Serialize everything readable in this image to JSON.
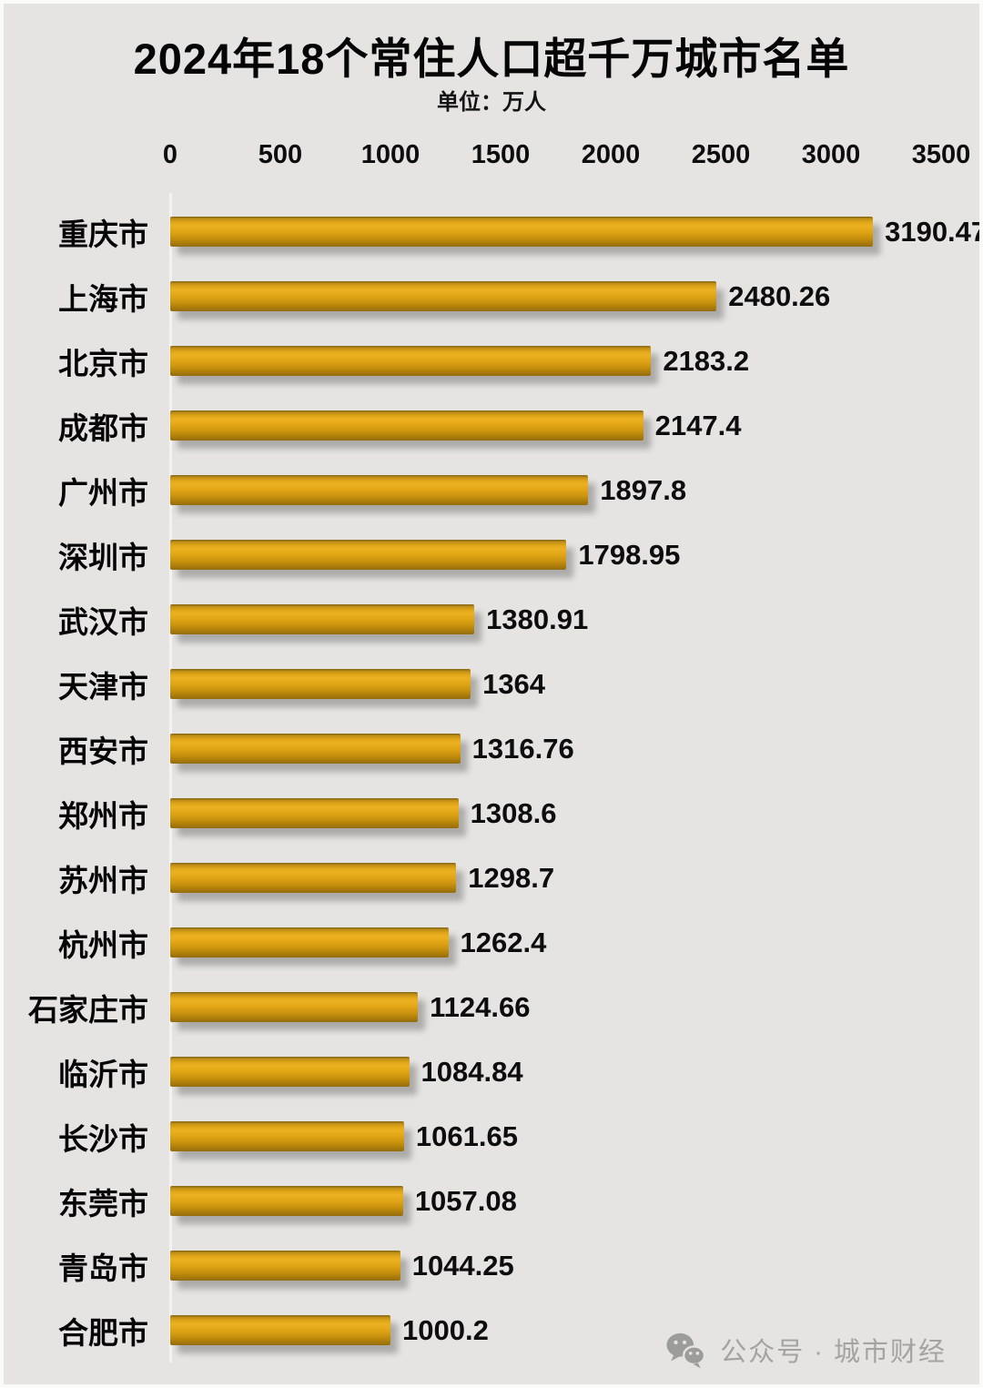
{
  "page": {
    "background": "#e5e4e2",
    "border_color": "#fafaf9"
  },
  "header": {
    "title": "2024年18个常住人口超千万城市名单",
    "unit_label": "单位：万人"
  },
  "chart_data": {
    "type": "bar",
    "orientation": "horizontal",
    "title": "2024年18个常住人口超千万城市名单",
    "unit": "万人",
    "categories": [
      "重庆市",
      "上海市",
      "北京市",
      "成都市",
      "广州市",
      "深圳市",
      "武汉市",
      "天津市",
      "西安市",
      "郑州市",
      "苏州市",
      "杭州市",
      "石家庄市",
      "临沂市",
      "长沙市",
      "东莞市",
      "青岛市",
      "合肥市"
    ],
    "values": [
      3190.47,
      2480.26,
      2183.2,
      2147.4,
      1897.8,
      1798.95,
      1380.91,
      1364,
      1316.76,
      1308.6,
      1298.7,
      1262.4,
      1124.66,
      1084.84,
      1061.65,
      1057.08,
      1044.25,
      1000.2
    ],
    "x_ticks": [
      0,
      500,
      1000,
      1500,
      2000,
      2500,
      3000,
      3500
    ],
    "xlim": [
      0,
      3500
    ],
    "grid": false,
    "legend": false,
    "bar_color": "#DFA51A",
    "axis_line_color": "#f3f2f0",
    "value_label_position": "outside-end"
  },
  "footer": {
    "icon": "wechat-icon",
    "text": "公众号 · 城市财经",
    "color": "#a3a3a2"
  }
}
